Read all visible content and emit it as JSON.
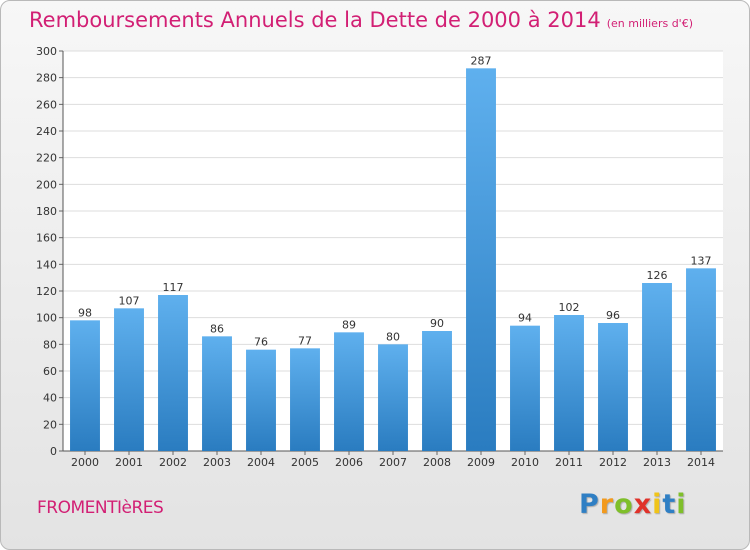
{
  "title": "Remboursements Annuels de la Dette de 2000 à 2014",
  "subtitle": "(en milliers d'€)",
  "commune": "FROMENTIèRES",
  "logo": {
    "letters": [
      "P",
      "r",
      "o",
      "x",
      "i",
      "t",
      "i"
    ],
    "colors": [
      "#2f7fc4",
      "#f29a1d",
      "#7fbf2a",
      "#e0322a",
      "#f0c419",
      "#2f7fc4",
      "#7fbf2a"
    ]
  },
  "colors": {
    "bar_top": "#5fb0ee",
    "bar_bottom": "#2a7cc0",
    "title": "#d21f74"
  },
  "chart_data": {
    "type": "bar",
    "categories": [
      "2000",
      "2001",
      "2002",
      "2003",
      "2004",
      "2005",
      "2006",
      "2007",
      "2008",
      "2009",
      "2010",
      "2011",
      "2012",
      "2013",
      "2014"
    ],
    "values": [
      98,
      107,
      117,
      86,
      76,
      77,
      89,
      80,
      90,
      287,
      94,
      102,
      96,
      126,
      137
    ],
    "ylim": [
      0,
      300
    ],
    "yticks": [
      0,
      20,
      40,
      60,
      80,
      100,
      120,
      140,
      160,
      180,
      200,
      220,
      240,
      260,
      280,
      300
    ],
    "grid": true,
    "data_labels": true
  }
}
